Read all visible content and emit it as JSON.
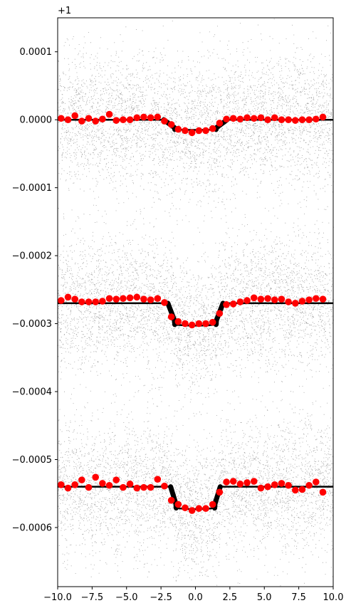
{
  "chart_data": {
    "type": "scatter",
    "title": "",
    "xlabel": "",
    "ylabel": "",
    "offset_label": "+1",
    "xlim": [
      -10,
      10
    ],
    "ylim": [
      -0.000687,
      0.00015
    ],
    "x_ticks": [
      -10,
      -7.5,
      -5,
      -2.5,
      0,
      2.5,
      5,
      7.5,
      10
    ],
    "x_tick_labels": [
      "−10.0",
      "−7.5",
      "−5.0",
      "−2.5",
      "0.0",
      "2.5",
      "5.0",
      "7.5",
      "10.0"
    ],
    "y_ticks": [
      0.0001,
      0,
      -0.0001,
      -0.0002,
      -0.0003,
      -0.0004,
      -0.0005,
      -0.0006
    ],
    "y_tick_labels": [
      "0.0001",
      "0.0000",
      "−0.0001",
      "−0.0002",
      "−0.0003",
      "−0.0004",
      "−0.0005",
      "−0.0006"
    ],
    "grid": false,
    "series": [
      {
        "kind": "model",
        "color": "#000000",
        "baseline": 0,
        "depth": 1.5e-05,
        "ingress_start": -2.3,
        "full_start": -1.5,
        "full_end": 1.5,
        "egress_end": 2.3
      },
      {
        "kind": "model",
        "color": "#000000",
        "baseline": -0.00027,
        "depth": 3.3e-05,
        "ingress_start": -2.0,
        "full_start": -1.5,
        "full_end": 1.5,
        "egress_end": 2.0
      },
      {
        "kind": "model",
        "color": "#000000",
        "baseline": -0.00054,
        "depth": 3.3e-05,
        "ingress_start": -1.8,
        "full_start": -1.4,
        "full_end": 1.4,
        "egress_end": 1.8
      },
      {
        "kind": "binned",
        "color": "#ff0000",
        "x": [
          -9.75,
          -9.25,
          -8.75,
          -8.25,
          -7.75,
          -7.25,
          -6.75,
          -6.25,
          -5.75,
          -5.25,
          -4.75,
          -4.25,
          -3.75,
          -3.25,
          -2.75,
          -2.25,
          -1.75,
          -1.25,
          -0.75,
          -0.25,
          0.25,
          0.75,
          1.25,
          1.75,
          2.25,
          2.75,
          3.25,
          3.75,
          4.25,
          4.75,
          5.25,
          5.75,
          6.25,
          6.75,
          7.25,
          7.75,
          8.25,
          8.75,
          9.25
        ],
        "y": [
          2e-06,
          0.0,
          6e-06,
          -2e-06,
          2e-06,
          -2e-06,
          1e-06,
          8e-06,
          -1e-06,
          0.0,
          0.0,
          3e-06,
          4e-06,
          3e-06,
          4e-06,
          -2e-06,
          -7e-06,
          -1.4e-05,
          -1.6e-05,
          -1.9e-05,
          -1.6e-05,
          -1.6e-05,
          -1.3e-05,
          -5e-06,
          1e-06,
          2e-06,
          1e-06,
          3e-06,
          2e-06,
          3e-06,
          0.0,
          3e-06,
          0.0,
          0.0,
          -1e-06,
          0.0,
          0.0,
          1e-06,
          4e-06
        ]
      },
      {
        "kind": "binned",
        "color": "#ff0000",
        "x": [
          -9.75,
          -9.25,
          -8.75,
          -8.25,
          -7.75,
          -7.25,
          -6.75,
          -6.25,
          -5.75,
          -5.25,
          -4.75,
          -4.25,
          -3.75,
          -3.25,
          -2.75,
          -2.25,
          -1.75,
          -1.25,
          -0.75,
          -0.25,
          0.25,
          0.75,
          1.25,
          1.75,
          2.25,
          2.75,
          3.25,
          3.75,
          4.25,
          4.75,
          5.25,
          5.75,
          6.25,
          6.75,
          7.25,
          7.75,
          8.25,
          8.75,
          9.25
        ],
        "y": [
          -0.000266,
          -0.000261,
          -0.000264,
          -0.000268,
          -0.000268,
          -0.000268,
          -0.000267,
          -0.000263,
          -0.000264,
          -0.000263,
          -0.000262,
          -0.000261,
          -0.000264,
          -0.000265,
          -0.000263,
          -0.000269,
          -0.00029,
          -0.000297,
          -0.0003,
          -0.000302,
          -0.0003,
          -0.0003,
          -0.000298,
          -0.000285,
          -0.000272,
          -0.000271,
          -0.000268,
          -0.000266,
          -0.000262,
          -0.000264,
          -0.000263,
          -0.000265,
          -0.000264,
          -0.000268,
          -0.00027,
          -0.000267,
          -0.000265,
          -0.000263,
          -0.000264
        ]
      },
      {
        "kind": "binned",
        "color": "#ff0000",
        "x": [
          -9.75,
          -9.25,
          -8.75,
          -8.25,
          -7.75,
          -7.25,
          -6.75,
          -6.25,
          -5.75,
          -5.25,
          -4.75,
          -4.25,
          -3.75,
          -3.25,
          -2.75,
          -2.25,
          -1.75,
          -1.25,
          -0.75,
          -0.25,
          0.25,
          0.75,
          1.25,
          1.75,
          2.25,
          2.75,
          3.25,
          3.75,
          4.25,
          4.75,
          5.25,
          5.75,
          6.25,
          6.75,
          7.25,
          7.75,
          8.25,
          8.75,
          9.25
        ],
        "y": [
          -0.000537,
          -0.000542,
          -0.000537,
          -0.00053,
          -0.000541,
          -0.000526,
          -0.000535,
          -0.000538,
          -0.00053,
          -0.000541,
          -0.000536,
          -0.000542,
          -0.000541,
          -0.000541,
          -0.000529,
          -0.000539,
          -0.00056,
          -0.000566,
          -0.000571,
          -0.000575,
          -0.000572,
          -0.000572,
          -0.000566,
          -0.000548,
          -0.000533,
          -0.000532,
          -0.000536,
          -0.000534,
          -0.000532,
          -0.000542,
          -0.00054,
          -0.000537,
          -0.000535,
          -0.000538,
          -0.000545,
          -0.000544,
          -0.000538,
          -0.000533,
          -0.000548
        ]
      },
      {
        "kind": "raw",
        "color": "#808080",
        "noise_sigma": 5e-05,
        "point_count_per_band": 4500,
        "bands": [
          0,
          -0.00027,
          -0.00054
        ]
      }
    ]
  }
}
